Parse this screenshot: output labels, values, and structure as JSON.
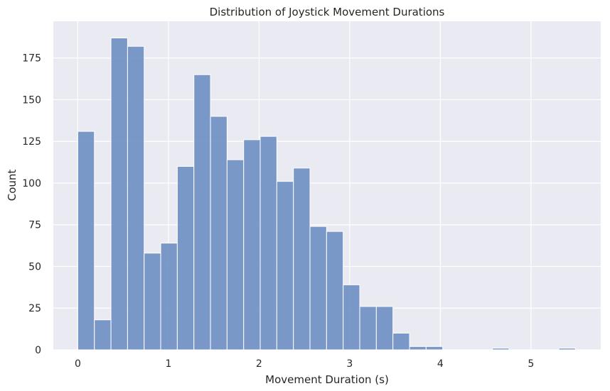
{
  "chart_data": {
    "type": "bar",
    "title": "Distribution of Joystick Movement Durations",
    "xlabel": "Movement Duration (s)",
    "ylabel": "Count",
    "bin_width": 0.183,
    "bins": [
      {
        "start": 0.0,
        "count": 131
      },
      {
        "start": 0.183,
        "count": 18
      },
      {
        "start": 0.366,
        "count": 187
      },
      {
        "start": 0.549,
        "count": 182
      },
      {
        "start": 0.732,
        "count": 58
      },
      {
        "start": 0.915,
        "count": 64
      },
      {
        "start": 1.098,
        "count": 110
      },
      {
        "start": 1.281,
        "count": 165
      },
      {
        "start": 1.464,
        "count": 140
      },
      {
        "start": 1.647,
        "count": 114
      },
      {
        "start": 1.83,
        "count": 126
      },
      {
        "start": 2.013,
        "count": 128
      },
      {
        "start": 2.196,
        "count": 101
      },
      {
        "start": 2.379,
        "count": 109
      },
      {
        "start": 2.562,
        "count": 74
      },
      {
        "start": 2.745,
        "count": 71
      },
      {
        "start": 2.928,
        "count": 39
      },
      {
        "start": 3.111,
        "count": 26
      },
      {
        "start": 3.294,
        "count": 26
      },
      {
        "start": 3.477,
        "count": 10
      },
      {
        "start": 3.66,
        "count": 2
      },
      {
        "start": 3.843,
        "count": 2
      },
      {
        "start": 4.026,
        "count": 0
      },
      {
        "start": 4.209,
        "count": 0
      },
      {
        "start": 4.392,
        "count": 0
      },
      {
        "start": 4.575,
        "count": 1
      },
      {
        "start": 4.758,
        "count": 0
      },
      {
        "start": 4.941,
        "count": 0
      },
      {
        "start": 5.124,
        "count": 0
      },
      {
        "start": 5.307,
        "count": 1
      }
    ],
    "xlim": [
      -0.27,
      5.77
    ],
    "ylim": [
      0,
      197
    ],
    "xticks": [
      0,
      1,
      2,
      3,
      4,
      5
    ],
    "yticks": [
      0,
      25,
      50,
      75,
      100,
      125,
      150,
      175
    ],
    "grid": true,
    "legend": "none",
    "colors": {
      "bar_fill": "#6a8cc0",
      "bar_edge": "#ffffff",
      "plot_background": "#eaeaf2",
      "grid": "#ffffff",
      "text": "#262626"
    }
  }
}
